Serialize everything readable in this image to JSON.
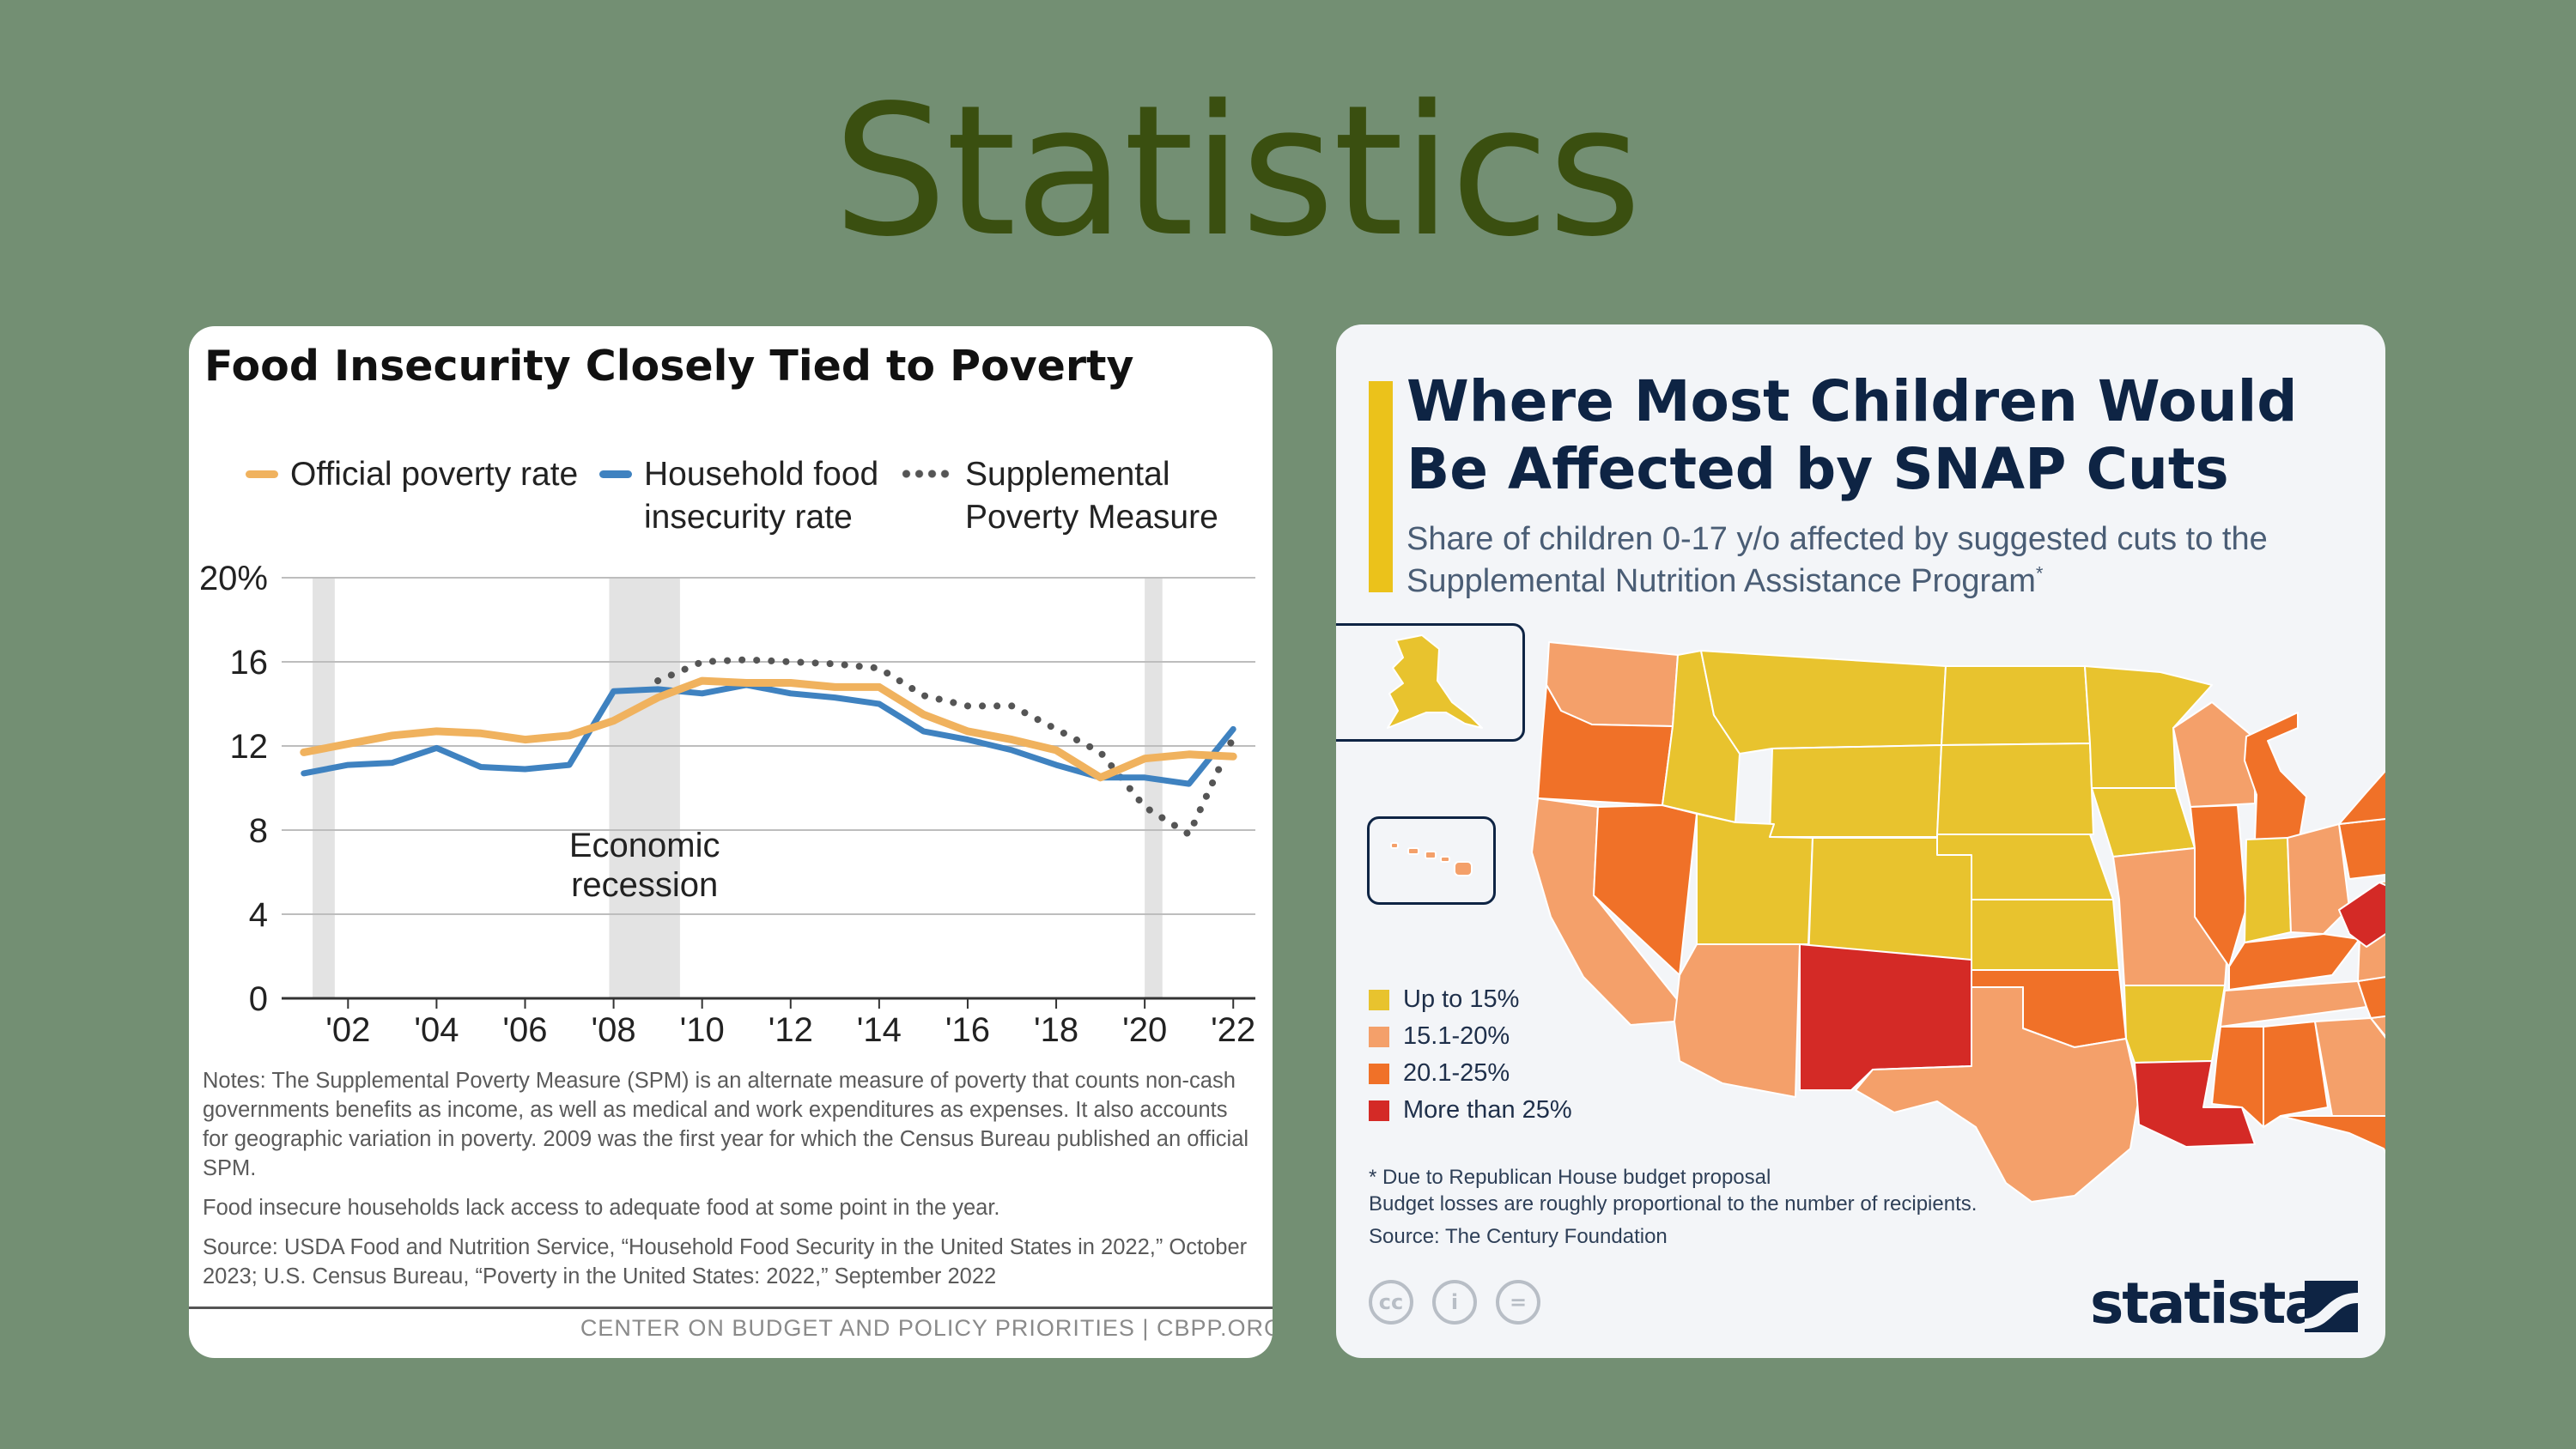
{
  "slide": {
    "title": "Statistics"
  },
  "left_card": {
    "title": "Food Insecurity Closely Tied to Poverty",
    "legend": [
      {
        "label": "Official poverty rate",
        "color": "#f0b25e"
      },
      {
        "label": "Household food\ninsecurity rate",
        "color": "#3f82c0"
      },
      {
        "label": "Supplemental\nPoverty Measure",
        "color": "#555555"
      }
    ],
    "notes": [
      "Notes: The Supplemental Poverty Measure (SPM) is an alternate measure of poverty that counts non-cash governments benefits as income, as well as medical and work expenditures as expenses. It also accounts for geographic variation in poverty. 2009 was the first year for which the Census Bureau published an official SPM.",
      "Food insecure households lack access to adequate food at some point in the year.",
      "Source: USDA Food and Nutrition Service, “Household Food Security in the United States in 2022,” October 2023; U.S. Census Bureau, “Poverty in the United States: 2022,” September 2022"
    ],
    "credit": "CENTER ON BUDGET AND POLICY PRIORITIES | CBPP.ORG"
  },
  "chart_data": {
    "type": "line",
    "title": "Food Insecurity Closely Tied to Poverty",
    "xlabel": "",
    "ylabel": "",
    "xlim": [
      2000.5,
      2022.5
    ],
    "ylim": [
      0,
      20
    ],
    "y_ticks": [
      0,
      4,
      8,
      12,
      16,
      20
    ],
    "y_tick_labels": [
      "0",
      "4",
      "8",
      "12",
      "16",
      "20%"
    ],
    "x_ticks": [
      2002,
      2004,
      2006,
      2008,
      2010,
      2012,
      2014,
      2016,
      2018,
      2020,
      2022
    ],
    "x_tick_labels": [
      "'02",
      "'04",
      "'06",
      "'08",
      "'10",
      "'12",
      "'14",
      "'16",
      "'18",
      "'20",
      "'22"
    ],
    "grid": true,
    "recession_bands": [
      [
        2001.2,
        2001.7
      ],
      [
        2007.9,
        2009.5
      ],
      [
        2020.0,
        2020.4
      ]
    ],
    "annotation": "Economic\nrecession",
    "series": [
      {
        "name": "Official poverty rate",
        "x": [
          2001,
          2002,
          2003,
          2004,
          2005,
          2006,
          2007,
          2008,
          2009,
          2010,
          2011,
          2012,
          2013,
          2014,
          2015,
          2016,
          2017,
          2018,
          2019,
          2020,
          2021,
          2022
        ],
        "values": [
          11.7,
          12.1,
          12.5,
          12.7,
          12.6,
          12.3,
          12.5,
          13.2,
          14.3,
          15.1,
          15.0,
          15.0,
          14.8,
          14.8,
          13.5,
          12.7,
          12.3,
          11.8,
          10.5,
          11.4,
          11.6,
          11.5
        ]
      },
      {
        "name": "Household food insecurity rate",
        "x": [
          2001,
          2002,
          2003,
          2004,
          2005,
          2006,
          2007,
          2008,
          2009,
          2010,
          2011,
          2012,
          2013,
          2014,
          2015,
          2016,
          2017,
          2018,
          2019,
          2020,
          2021,
          2022
        ],
        "values": [
          10.7,
          11.1,
          11.2,
          11.9,
          11.0,
          10.9,
          11.1,
          14.6,
          14.7,
          14.5,
          14.9,
          14.5,
          14.3,
          14.0,
          12.7,
          12.3,
          11.8,
          11.1,
          10.5,
          10.5,
          10.2,
          12.8
        ]
      },
      {
        "name": "Supplemental Poverty Measure",
        "x": [
          2009,
          2010,
          2011,
          2012,
          2013,
          2014,
          2015,
          2016,
          2017,
          2018,
          2019,
          2020,
          2021,
          2022
        ],
        "values": [
          15.1,
          16.0,
          16.1,
          16.0,
          15.9,
          15.7,
          14.4,
          13.9,
          13.9,
          12.8,
          11.7,
          9.1,
          7.8,
          12.4
        ]
      }
    ]
  },
  "right_card": {
    "title": "Where Most Children Would Be Affected by SNAP Cuts",
    "subtitle": "Share of children 0-17 y/o affected by suggested cuts to the Supplemental Nutrition Assistance Program",
    "subtitle_mark": "*",
    "legend": [
      {
        "label": "Up to 15%",
        "color": "#e8c32e"
      },
      {
        "label": "15.1-20%",
        "color": "#f4a06a"
      },
      {
        "label": "20.1-25%",
        "color": "#f07128"
      },
      {
        "label": "More than 25%",
        "color": "#d42a26"
      }
    ],
    "notes": [
      "* Due to Republican House budget proposal",
      "Budget losses are roughly proportional to the number of recipients.",
      "Source: The Century Foundation"
    ],
    "license_icons": [
      "cc",
      "i",
      "="
    ],
    "brand": "statista"
  }
}
